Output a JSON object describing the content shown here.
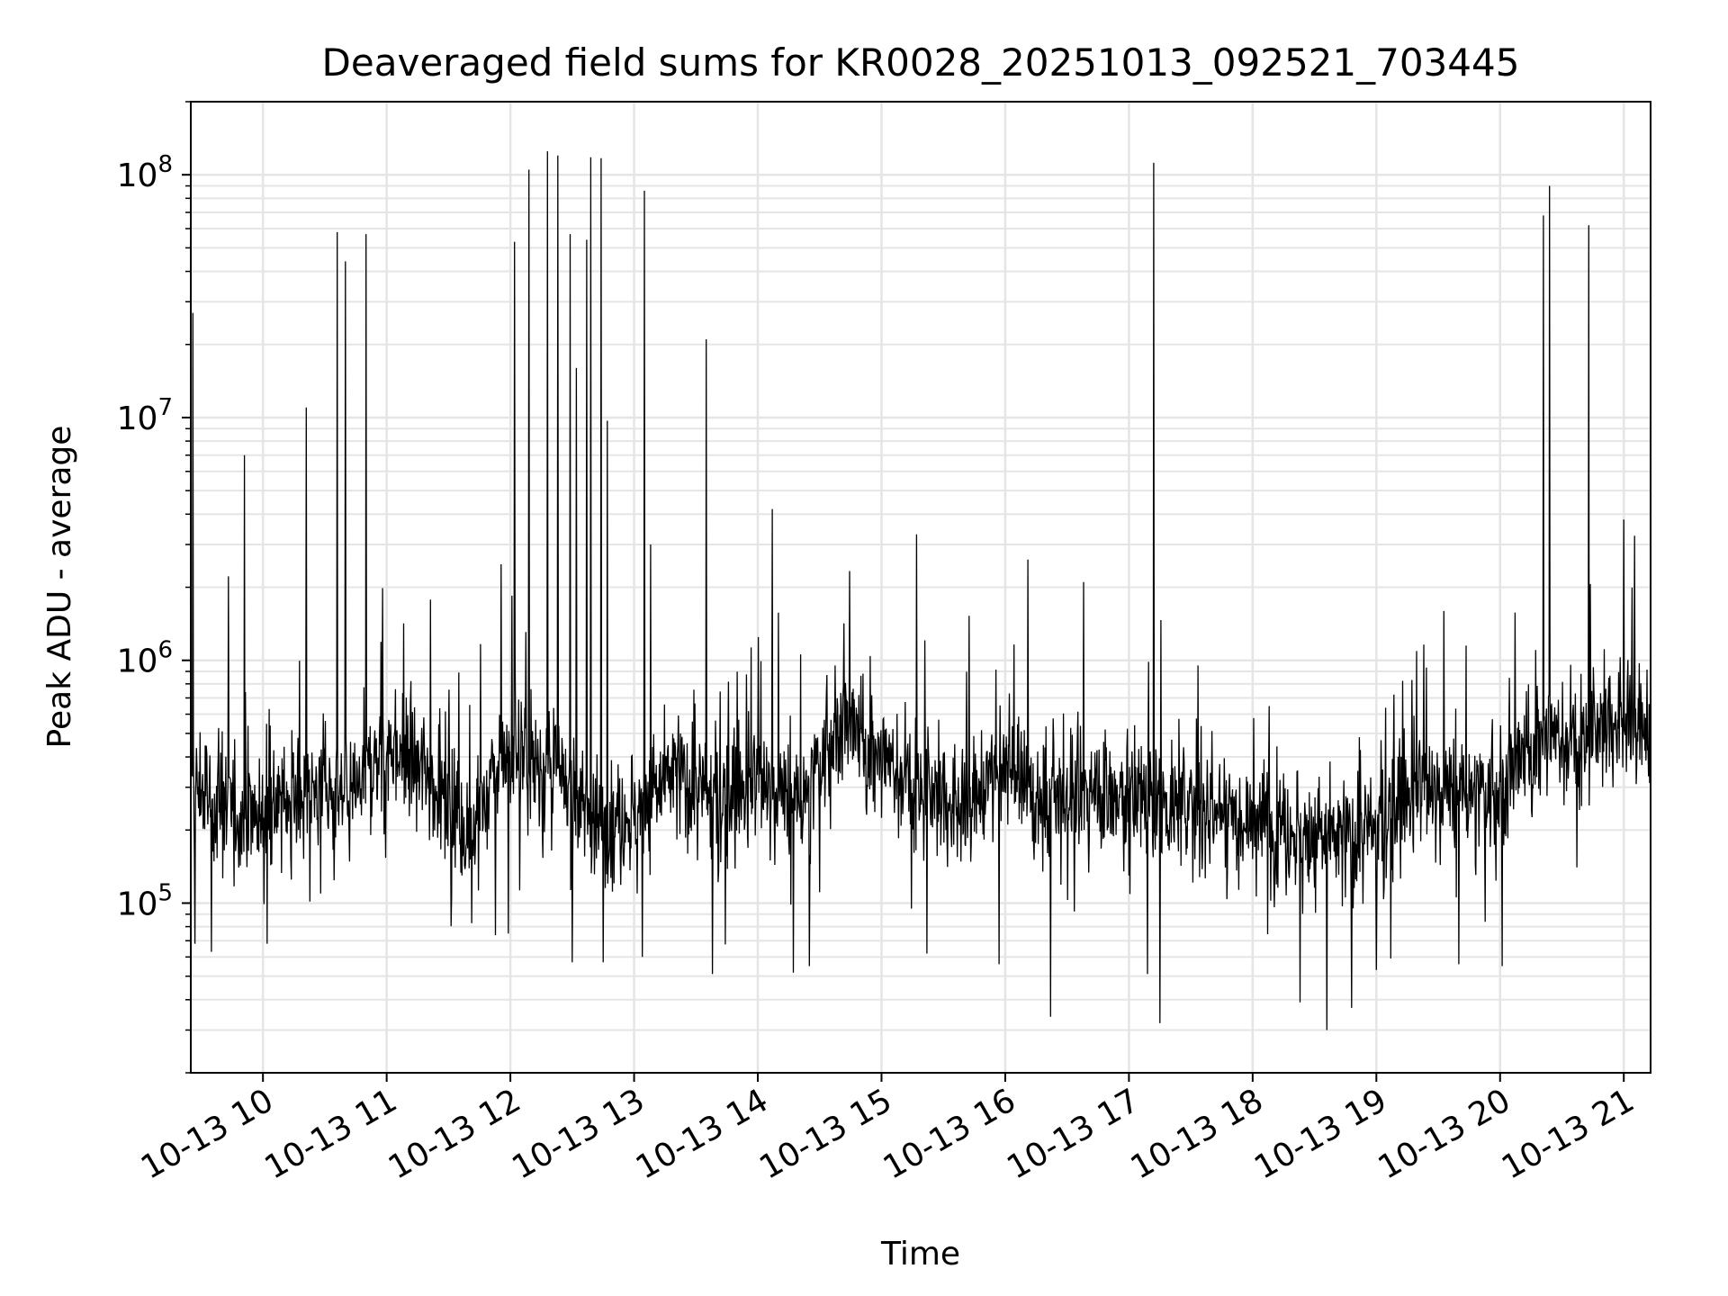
{
  "chart_data": {
    "type": "line",
    "title": "Deaveraged field sums for KR0028_20251013_092521_703445",
    "xlabel": "Time",
    "ylabel": "Peak ADU - average",
    "x_tick_labels": [
      "10-13 10",
      "10-13 11",
      "10-13 12",
      "10-13 13",
      "10-13 14",
      "10-13 15",
      "10-13 16",
      "10-13 17",
      "10-13 18",
      "10-13 19",
      "10-13 20",
      "10-13 21"
    ],
    "y_tick_labels": [
      {
        "value": 100000,
        "mantissa": "10",
        "exponent": "5"
      },
      {
        "value": 1000000,
        "mantissa": "10",
        "exponent": "6"
      },
      {
        "value": 10000000,
        "mantissa": "10",
        "exponent": "7"
      },
      {
        "value": 100000000,
        "mantissa": "10",
        "exponent": "8"
      }
    ],
    "xlim": [
      "2025-10-13 09:25",
      "2025-10-13 21:13"
    ],
    "ylim": [
      20000,
      200000000
    ],
    "y_scale": "log",
    "grid": true,
    "line_color": "#000000",
    "grid_color": "#e5e5e5",
    "series": [
      {
        "values_note_free": true,
        "baseline": [
          [
            "2025-10-13 09:25",
            300000
          ],
          [
            "2025-10-13 09:45",
            250000
          ],
          [
            "2025-10-13 10:00",
            230000
          ],
          [
            "2025-10-13 10:20",
            300000
          ],
          [
            "2025-10-13 10:40",
            260000
          ],
          [
            "2025-10-13 11:00",
            450000
          ],
          [
            "2025-10-13 11:20",
            350000
          ],
          [
            "2025-10-13 11:40",
            200000
          ],
          [
            "2025-10-13 12:00",
            420000
          ],
          [
            "2025-10-13 12:20",
            350000
          ],
          [
            "2025-10-13 12:40",
            220000
          ],
          [
            "2025-10-13 13:00",
            230000
          ],
          [
            "2025-10-13 13:20",
            350000
          ],
          [
            "2025-10-13 13:40",
            250000
          ],
          [
            "2025-10-13 14:00",
            320000
          ],
          [
            "2025-10-13 14:20",
            250000
          ],
          [
            "2025-10-13 14:40",
            550000
          ],
          [
            "2025-10-13 15:00",
            400000
          ],
          [
            "2025-10-13 15:20",
            280000
          ],
          [
            "2025-10-13 15:40",
            250000
          ],
          [
            "2025-10-13 16:00",
            350000
          ],
          [
            "2025-10-13 16:20",
            260000
          ],
          [
            "2025-10-13 16:40",
            300000
          ],
          [
            "2025-10-13 17:00",
            280000
          ],
          [
            "2025-10-13 17:20",
            250000
          ],
          [
            "2025-10-13 17:40",
            250000
          ],
          [
            "2025-10-13 18:00",
            230000
          ],
          [
            "2025-10-13 18:20",
            200000
          ],
          [
            "2025-10-13 18:40",
            180000
          ],
          [
            "2025-10-13 19:00",
            200000
          ],
          [
            "2025-10-13 19:20",
            300000
          ],
          [
            "2025-10-13 19:40",
            280000
          ],
          [
            "2025-10-13 20:00",
            280000
          ],
          [
            "2025-10-13 20:20",
            500000
          ],
          [
            "2025-10-13 20:40",
            450000
          ],
          [
            "2025-10-13 21:00",
            600000
          ],
          [
            "2025-10-13 21:13",
            500000
          ]
        ],
        "peaks": [
          [
            "2025-10-13 09:26",
            27000000
          ],
          [
            "2025-10-13 09:51",
            7000000
          ],
          [
            "2025-10-13 10:21",
            11000000
          ],
          [
            "2025-10-13 10:36",
            58000000
          ],
          [
            "2025-10-13 10:40",
            44000000
          ],
          [
            "2025-10-13 10:50",
            57000000
          ],
          [
            "2025-10-13 12:02",
            53000000
          ],
          [
            "2025-10-13 12:09",
            105000000
          ],
          [
            "2025-10-13 12:18",
            125000000
          ],
          [
            "2025-10-13 12:23",
            120000000
          ],
          [
            "2025-10-13 12:29",
            57000000
          ],
          [
            "2025-10-13 12:32",
            16000000
          ],
          [
            "2025-10-13 12:37",
            54000000
          ],
          [
            "2025-10-13 12:39",
            118000000
          ],
          [
            "2025-10-13 12:44",
            117000000
          ],
          [
            "2025-10-13 12:47",
            9700000
          ],
          [
            "2025-10-13 13:05",
            86000000
          ],
          [
            "2025-10-13 13:08",
            3000000
          ],
          [
            "2025-10-13 13:35",
            21000000
          ],
          [
            "2025-10-13 14:07",
            4200000
          ],
          [
            "2025-10-13 15:17",
            3300000
          ],
          [
            "2025-10-13 16:11",
            2600000
          ],
          [
            "2025-10-13 16:38",
            2100000
          ],
          [
            "2025-10-13 17:12",
            112000000
          ],
          [
            "2025-10-13 20:21",
            68000000
          ],
          [
            "2025-10-13 20:24",
            90000000
          ],
          [
            "2025-10-13 20:43",
            62000000
          ],
          [
            "2025-10-13 21:00",
            3800000
          ]
        ],
        "dips": [
          [
            "2025-10-13 09:27",
            68000
          ],
          [
            "2025-10-13 09:35",
            63000
          ],
          [
            "2025-10-13 10:02",
            68000
          ],
          [
            "2025-10-13 11:59",
            75000
          ],
          [
            "2025-10-13 12:30",
            57000
          ],
          [
            "2025-10-13 12:45",
            57000
          ],
          [
            "2025-10-13 13:04",
            60000
          ],
          [
            "2025-10-13 13:38",
            51000
          ],
          [
            "2025-10-13 14:25",
            55000
          ],
          [
            "2025-10-13 15:22",
            62000
          ],
          [
            "2025-10-13 15:57",
            56000
          ],
          [
            "2025-10-13 16:22",
            34000
          ],
          [
            "2025-10-13 17:09",
            51000
          ],
          [
            "2025-10-13 17:15",
            32000
          ],
          [
            "2025-10-13 18:23",
            39000
          ],
          [
            "2025-10-13 18:36",
            30000
          ],
          [
            "2025-10-13 18:48",
            37000
          ],
          [
            "2025-10-13 19:00",
            53000
          ],
          [
            "2025-10-13 20:01",
            55000
          ]
        ]
      }
    ]
  }
}
